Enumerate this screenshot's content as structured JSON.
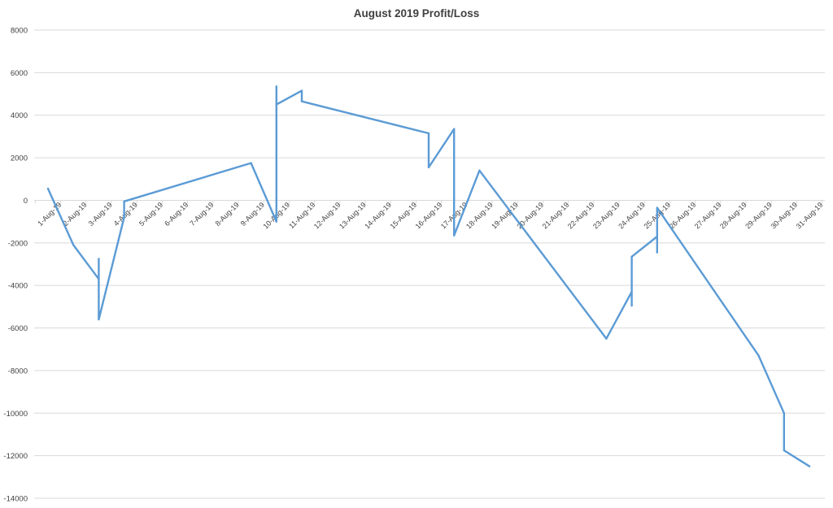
{
  "chart_data": {
    "type": "line",
    "title": "August 2019 Profit/Loss",
    "xlabel": "",
    "ylabel": "",
    "ylim": [
      -14000,
      8000
    ],
    "yticks": [
      8000,
      6000,
      4000,
      2000,
      0,
      -2000,
      -4000,
      -6000,
      -8000,
      -10000,
      -12000,
      -14000
    ],
    "categories": [
      "1-Aug-19",
      "2-Aug-19",
      "3-Aug-19",
      "4-Aug-19",
      "5-Aug-19",
      "6-Aug-19",
      "7-Aug-19",
      "8-Aug-19",
      "9-Aug-19",
      "10-Aug-19",
      "11-Aug-19",
      "12-Aug-19",
      "13-Aug-19",
      "14-Aug-19",
      "15-Aug-19",
      "16-Aug-19",
      "17-Aug-19",
      "18-Aug-19",
      "19-Aug-19",
      "20-Aug-19",
      "21-Aug-19",
      "22-Aug-19",
      "23-Aug-19",
      "24-Aug-19",
      "25-Aug-19",
      "26-Aug-19",
      "27-Aug-19",
      "28-Aug-19",
      "29-Aug-19",
      "30-Aug-19",
      "31-Aug-19"
    ],
    "grid": true,
    "legend": "none",
    "series": [
      {
        "color": "#5b9bd5",
        "points": [
          {
            "x": "1-Aug-19",
            "y": 550
          },
          {
            "x": "2-Aug-19",
            "y": -2100
          },
          {
            "x": "3-Aug-19",
            "y": -3700
          },
          {
            "x": "3-Aug-19",
            "y": -2750
          },
          {
            "x": "3-Aug-19",
            "y": -5600
          },
          {
            "x": "4-Aug-19",
            "y": -800
          },
          {
            "x": "4-Aug-19",
            "y": -50
          },
          {
            "x": "9-Aug-19",
            "y": 1750
          },
          {
            "x": "10-Aug-19",
            "y": -1000
          },
          {
            "x": "10-Aug-19",
            "y": 5350
          },
          {
            "x": "10-Aug-19",
            "y": 4500
          },
          {
            "x": "11-Aug-19",
            "y": 5150
          },
          {
            "x": "11-Aug-19",
            "y": 4650
          },
          {
            "x": "16-Aug-19",
            "y": 3150
          },
          {
            "x": "16-Aug-19",
            "y": 1550
          },
          {
            "x": "17-Aug-19",
            "y": 3350
          },
          {
            "x": "17-Aug-19",
            "y": -1650
          },
          {
            "x": "18-Aug-19",
            "y": 1400
          },
          {
            "x": "23-Aug-19",
            "y": -6500
          },
          {
            "x": "24-Aug-19",
            "y": -4300
          },
          {
            "x": "24-Aug-19",
            "y": -4950
          },
          {
            "x": "24-Aug-19",
            "y": -2650
          },
          {
            "x": "25-Aug-19",
            "y": -1700
          },
          {
            "x": "25-Aug-19",
            "y": -2450
          },
          {
            "x": "25-Aug-19",
            "y": -350
          },
          {
            "x": "29-Aug-19",
            "y": -7300
          },
          {
            "x": "30-Aug-19",
            "y": -10000
          },
          {
            "x": "30-Aug-19",
            "y": -11750
          },
          {
            "x": "31-Aug-19",
            "y": -12500
          }
        ]
      }
    ]
  }
}
